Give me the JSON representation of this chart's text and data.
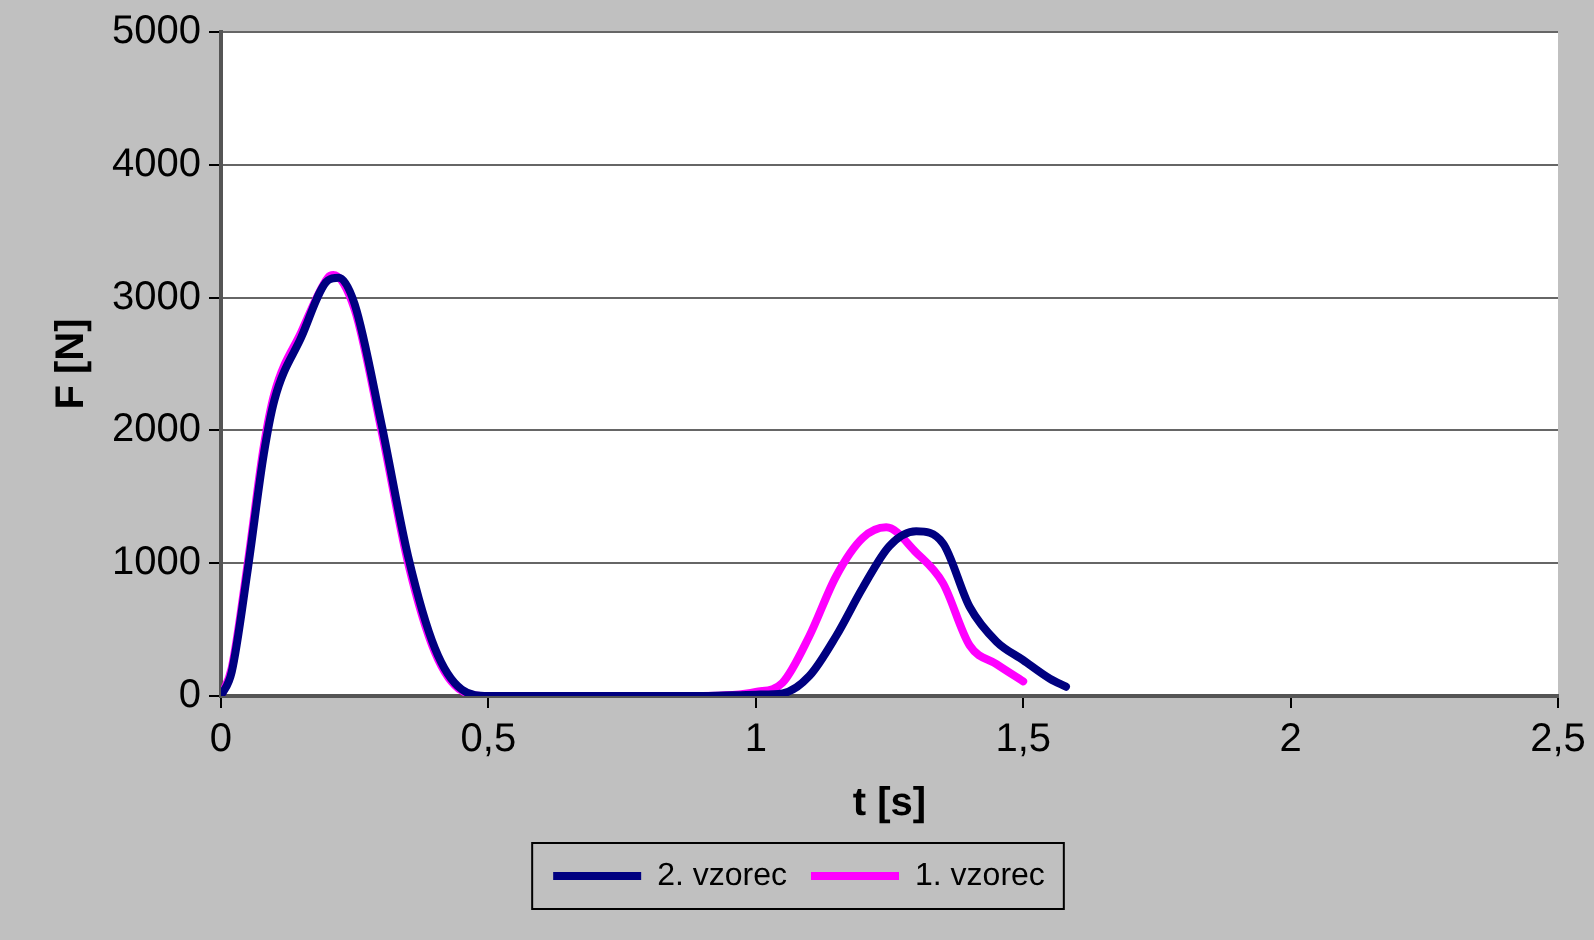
{
  "chart_data": {
    "type": "line",
    "xlabel": "t [s]",
    "ylabel": "F [N]",
    "xlim": [
      0,
      2.5
    ],
    "xticks": [
      0,
      {
        "value": 0.5,
        "label": "0,5"
      },
      1,
      {
        "value": 1.5,
        "label": "1,5"
      },
      2,
      {
        "value": 2.5,
        "label": "2,5"
      }
    ],
    "ylim": [
      0,
      5000
    ],
    "yticks": [
      0,
      1000,
      2000,
      3000,
      4000,
      5000
    ],
    "grid": "y",
    "legend": "bottom",
    "marker": "none",
    "line_style": "solid",
    "series": [
      {
        "name": "2. vzorec",
        "color": "#000080",
        "x": [
          0,
          0.02,
          0.05,
          0.08,
          0.1,
          0.15,
          0.2,
          0.22,
          0.25,
          0.3,
          0.35,
          0.4,
          0.45,
          0.5,
          0.7,
          0.9,
          1.0,
          1.05,
          1.1,
          1.15,
          1.2,
          1.25,
          1.3,
          1.35,
          1.4,
          1.45,
          1.5,
          1.55,
          1.58
        ],
        "values": [
          0,
          180,
          950,
          1820,
          2230,
          2700,
          3130,
          3150,
          2950,
          2050,
          1050,
          360,
          50,
          0,
          0,
          0,
          10,
          20,
          150,
          450,
          815,
          1130,
          1240,
          1150,
          670,
          410,
          270,
          130,
          70
        ]
      },
      {
        "name": "1. vzorec",
        "color": "#ff00ff",
        "x": [
          0,
          0.02,
          0.05,
          0.08,
          0.1,
          0.15,
          0.2,
          0.21,
          0.25,
          0.3,
          0.35,
          0.4,
          0.45,
          0.5,
          0.7,
          0.9,
          1.0,
          1.05,
          1.1,
          1.15,
          1.2,
          1.244,
          1.3,
          1.35,
          1.4,
          1.45,
          1.5
        ],
        "values": [
          0,
          210,
          1000,
          1880,
          2280,
          2740,
          3150,
          3170,
          2910,
          2000,
          1000,
          330,
          40,
          0,
          0,
          0,
          30,
          100,
          450,
          900,
          1190,
          1270,
          1080,
          850,
          380,
          240,
          110
        ]
      }
    ]
  }
}
